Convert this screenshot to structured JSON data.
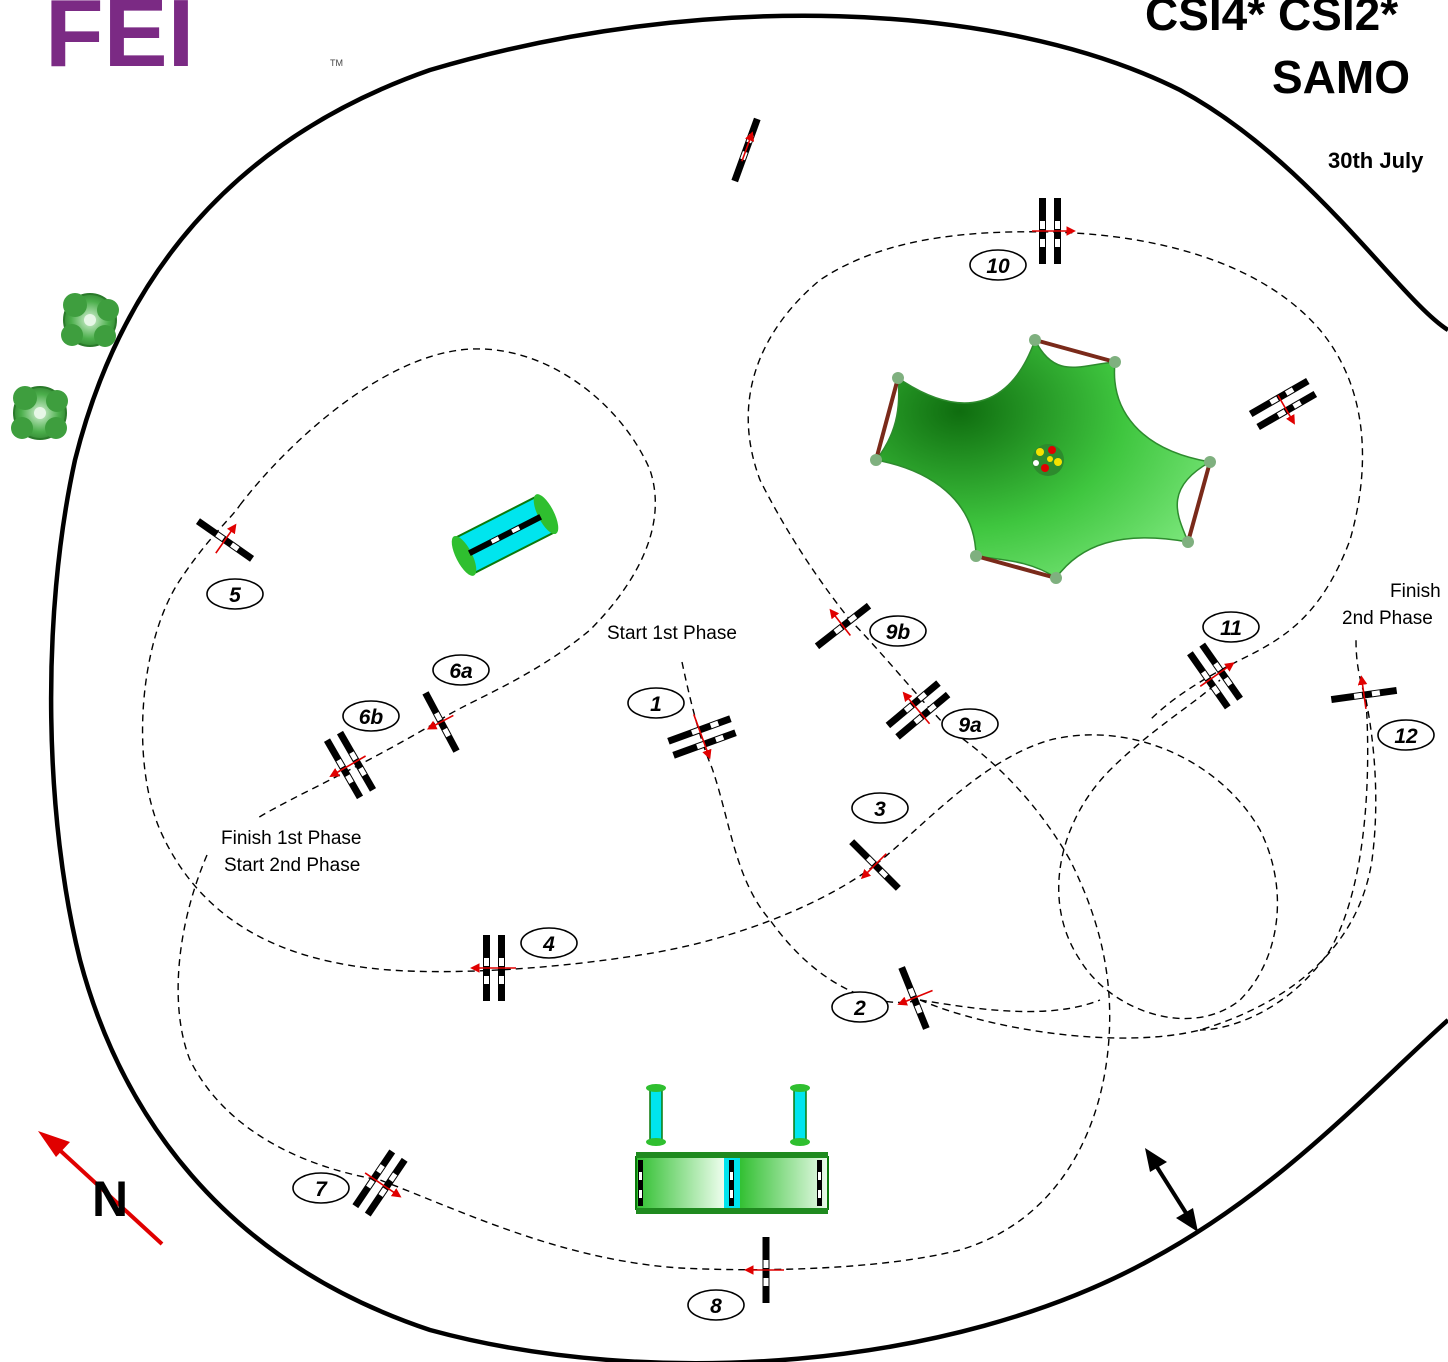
{
  "header": {
    "logo_text": "FEI",
    "title_line1": "CSI4* CSI2*",
    "title_line2": "SAMO",
    "date_text": "30th July"
  },
  "compass": {
    "label": "N"
  },
  "annotations": {
    "start_1st_phase": "Start 1st Phase",
    "finish_1st_phase": "Finish 1st Phase",
    "start_2nd_phase": "Start 2nd Phase",
    "finish_2nd_phase_line1": "Finish",
    "finish_2nd_phase_line2": "2nd Phase"
  },
  "obstacles": [
    {
      "id": "1",
      "label": "1",
      "type": "oxer"
    },
    {
      "id": "2",
      "label": "2",
      "type": "vertical"
    },
    {
      "id": "3",
      "label": "3",
      "type": "vertical"
    },
    {
      "id": "4",
      "label": "4",
      "type": "oxer"
    },
    {
      "id": "5",
      "label": "5",
      "type": "vertical"
    },
    {
      "id": "6a",
      "label": "6a",
      "type": "vertical"
    },
    {
      "id": "6b",
      "label": "6b",
      "type": "oxer"
    },
    {
      "id": "7",
      "label": "7",
      "type": "oxer"
    },
    {
      "id": "8",
      "label": "8",
      "type": "vertical"
    },
    {
      "id": "9a",
      "label": "9a",
      "type": "oxer"
    },
    {
      "id": "9b",
      "label": "9b",
      "type": "vertical"
    },
    {
      "id": "10",
      "label": "10",
      "type": "oxer"
    },
    {
      "id": "11",
      "label": "11",
      "type": "oxer"
    },
    {
      "id": "12",
      "label": "12",
      "type": "vertical"
    }
  ],
  "colors": {
    "logo": "#7b2a84",
    "direction_arrow": "#e00000",
    "water": "#00e5ee",
    "grass": "#3ecf3e",
    "hedge": "#1f8a1f"
  }
}
